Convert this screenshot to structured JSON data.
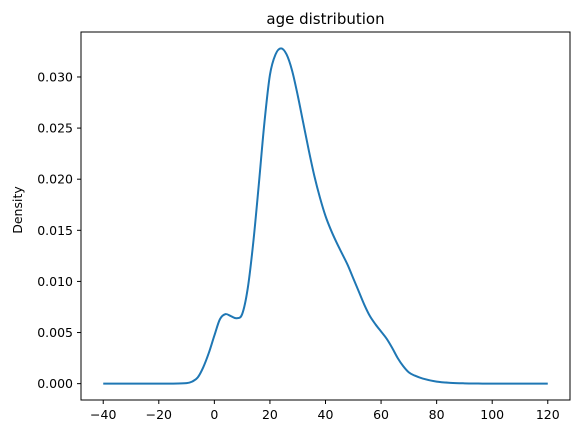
{
  "chart_data": {
    "type": "line",
    "title": "age distribution",
    "xlabel": "",
    "ylabel": "Density",
    "xlim": [
      -48,
      128
    ],
    "ylim": [
      -0.0016,
      0.0344
    ],
    "xticks": [
      -40,
      -20,
      0,
      20,
      40,
      60,
      80,
      100,
      120
    ],
    "xtick_labels": [
      "−40",
      "−20",
      "0",
      "20",
      "40",
      "60",
      "80",
      "100",
      "120"
    ],
    "yticks": [
      0.0,
      0.005,
      0.01,
      0.015,
      0.02,
      0.025,
      0.03
    ],
    "ytick_labels": [
      "0.000",
      "0.005",
      "0.010",
      "0.015",
      "0.020",
      "0.025",
      "0.030"
    ],
    "grid": false,
    "series": [
      {
        "color": "#1f77b4",
        "x": [
          -40,
          -30,
          -20,
          -15,
          -10,
          -8,
          -6,
          -4,
          -2,
          0,
          2,
          4,
          6,
          8,
          10,
          12,
          14,
          16,
          18,
          20,
          22,
          24,
          26,
          28,
          30,
          32,
          34,
          36,
          38,
          40,
          42,
          44,
          46,
          48,
          50,
          52,
          54,
          56,
          58,
          60,
          62,
          64,
          66,
          68,
          70,
          72,
          75,
          80,
          85,
          90,
          95,
          100,
          110,
          120
        ],
        "y": [
          0.0,
          0.0,
          0.0,
          0.0,
          5e-05,
          0.0002,
          0.0006,
          0.0016,
          0.003,
          0.0047,
          0.0063,
          0.0068,
          0.0066,
          0.0064,
          0.0068,
          0.0093,
          0.0138,
          0.0195,
          0.0255,
          0.0302,
          0.0322,
          0.0328,
          0.0322,
          0.0306,
          0.0282,
          0.0255,
          0.0228,
          0.0203,
          0.0182,
          0.0164,
          0.015,
          0.0138,
          0.0127,
          0.0116,
          0.0103,
          0.009,
          0.0077,
          0.0066,
          0.0058,
          0.0051,
          0.0044,
          0.0035,
          0.0025,
          0.0017,
          0.0011,
          0.0008,
          0.0005,
          0.0002,
          8e-05,
          3e-05,
          1e-05,
          0.0,
          0.0,
          0.0
        ]
      }
    ]
  }
}
